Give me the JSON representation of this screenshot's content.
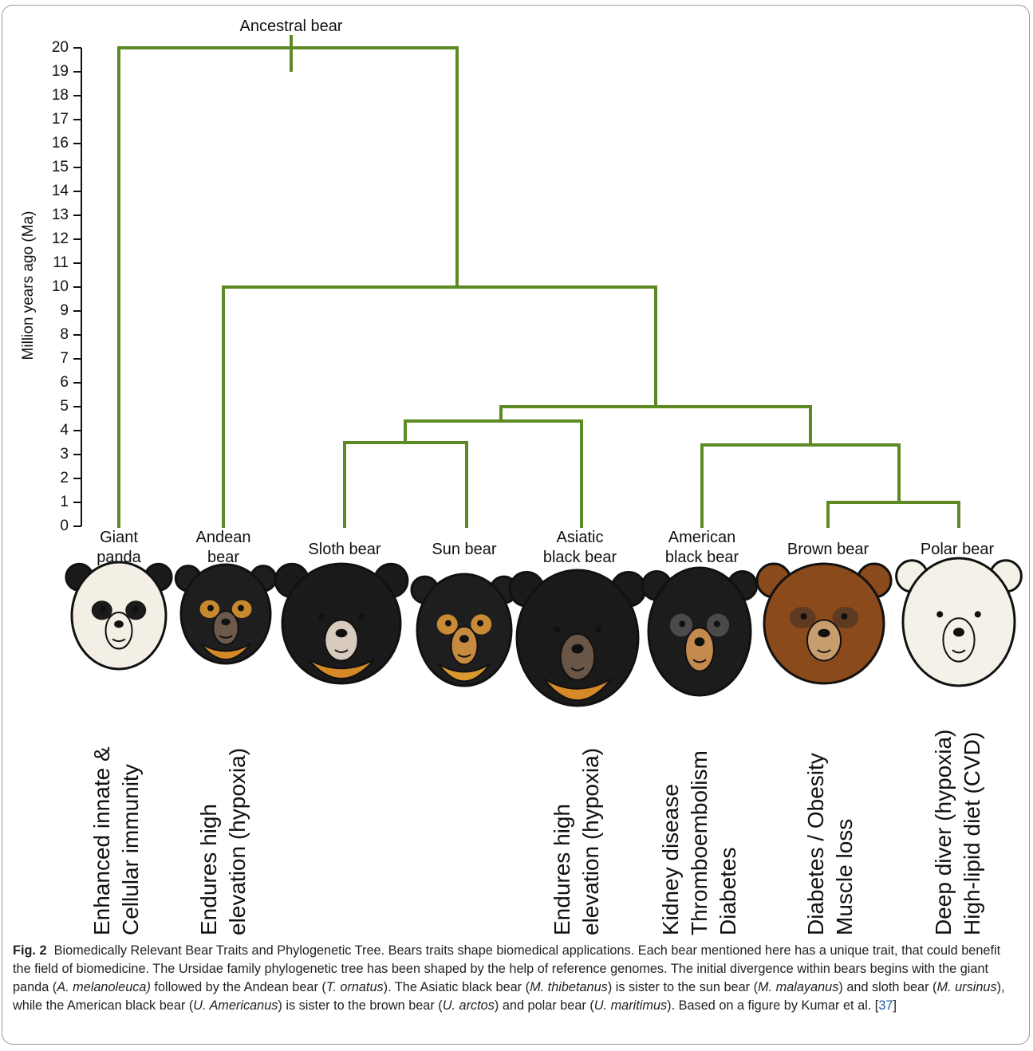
{
  "figure": {
    "y_axis_label": "Million years ago (Ma)",
    "y_ticks": [
      "0",
      "1",
      "2",
      "3",
      "4",
      "5",
      "6",
      "7",
      "8",
      "9",
      "10",
      "11",
      "12",
      "13",
      "14",
      "15",
      "16",
      "17",
      "18",
      "19",
      "20"
    ],
    "root_label": "Ancestral bear",
    "branch_color": "#5e8a25",
    "species": [
      {
        "id": "giant-panda",
        "name": "Giant\npanda",
        "trait": "Enhanced innate &\nCellular immunity"
      },
      {
        "id": "andean-bear",
        "name": "Andean\nbear",
        "trait": "Endures high\nelevation (hypoxia)"
      },
      {
        "id": "sloth-bear",
        "name": "Sloth bear",
        "trait": ""
      },
      {
        "id": "sun-bear",
        "name": "Sun bear",
        "trait": ""
      },
      {
        "id": "asiatic-black-bear",
        "name": "Asiatic\nblack bear",
        "trait": "Endures high\nelevation (hypoxia)"
      },
      {
        "id": "american-black-bear",
        "name": "American\nblack bear",
        "trait": "Kidney disease\nThromboembolism\nDiabetes"
      },
      {
        "id": "brown-bear",
        "name": "Brown bear",
        "trait": "Diabetes / Obesity\nMuscle loss"
      },
      {
        "id": "polar-bear",
        "name": "Polar bear",
        "trait": "Deep diver (hypoxia)\nHigh-lipid diet (CVD)"
      }
    ],
    "divergences_ma": {
      "root": 20,
      "andean_split": 10,
      "tremarctine_vs_ursine": 5,
      "asiatic_split": 4.4,
      "sloth_sun": 3.5,
      "american_split": 3.4,
      "brown_polar": 1
    }
  },
  "caption": {
    "label": "Fig. 2",
    "title": "Biomedically Relevant Bear Traits and Phylogenetic Tree.",
    "text_1": " Bears traits shape biomedical applications. Each bear mentioned here has a unique trait, that could benefit the field of biomedicine. The Ursidae family phylogenetic tree has been shaped by the help of reference genomes. The initial divergence within bears begins with the giant panda (",
    "sp_panda": "A. melanoleuca)",
    "text_2": " followed by the Andean bear (",
    "sp_andean": "T. ornatus",
    "text_3": "). The Asiatic black bear (",
    "sp_asiatic": "M. thibetanus",
    "text_4": ") is sister to the sun bear (",
    "sp_sun": "M. malayanus",
    "text_5": ") and sloth bear (",
    "sp_sloth": "M. ursinus",
    "text_6": "), while the American black bear (",
    "sp_american": "U. Americanus",
    "text_7": ") is sister to the brown bear (",
    "sp_brown": "U. arctos",
    "text_8": ") and polar bear (",
    "sp_polar": "U. maritimus",
    "text_9": "). Based on a figure by Kumar et al. [",
    "ref": "37",
    "text_10": "]"
  }
}
